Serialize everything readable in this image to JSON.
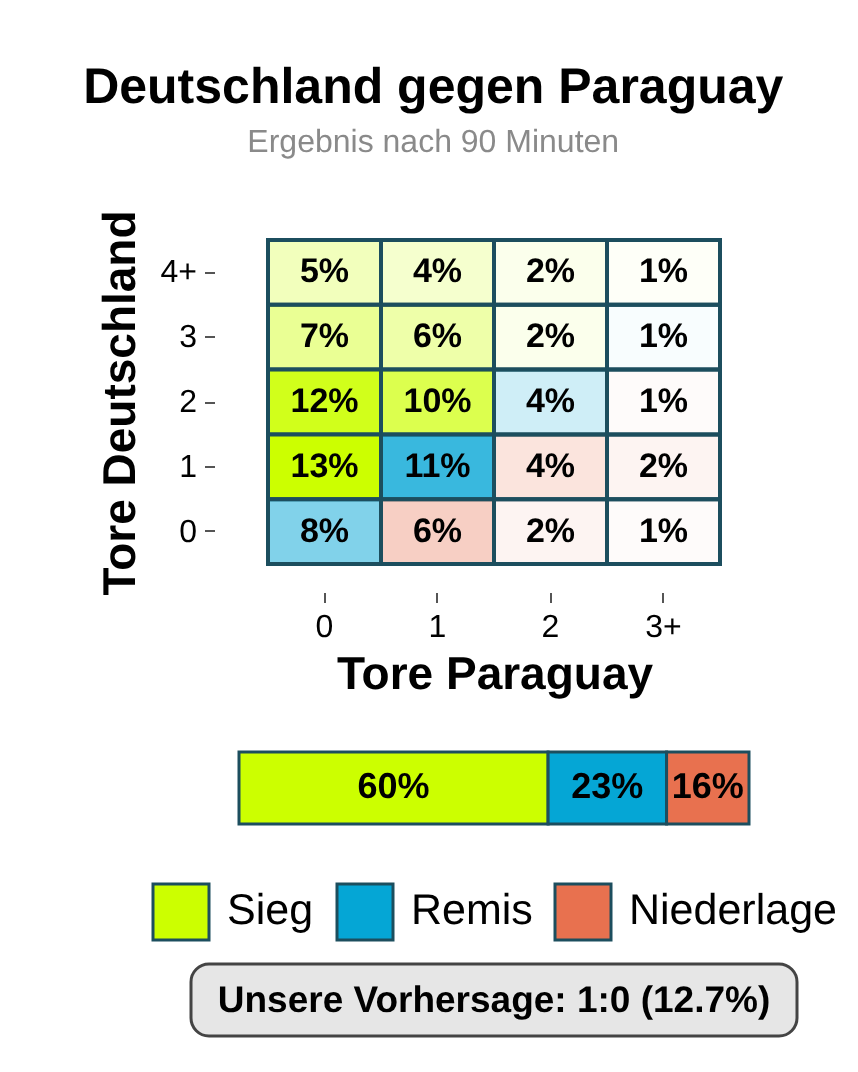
{
  "chart_data": [
    {
      "type": "heatmap",
      "title": "Deutschland gegen Paraguay",
      "subtitle": "Ergebnis nach 90 Minuten",
      "xlabel": "Tore Paraguay",
      "ylabel": "Tore Deutschland",
      "categories": [
        "0",
        "1",
        "2",
        "3+"
      ],
      "y_categories": [
        "4+",
        "3",
        "2",
        "1",
        "0"
      ],
      "cells": [
        [
          5,
          4,
          2,
          1
        ],
        [
          7,
          6,
          2,
          1
        ],
        [
          12,
          10,
          4,
          1
        ],
        [
          13,
          11,
          4,
          2
        ],
        [
          8,
          6,
          2,
          1
        ]
      ],
      "cell_labels": [
        [
          "5%",
          "4%",
          "2%",
          "1%"
        ],
        [
          "7%",
          "6%",
          "2%",
          "1%"
        ],
        [
          "12%",
          "10%",
          "4%",
          "1%"
        ],
        [
          "13%",
          "11%",
          "4%",
          "2%"
        ],
        [
          "8%",
          "6%",
          "2%",
          "1%"
        ]
      ],
      "colors": [
        [
          "#ccff00",
          "#ccff00",
          "#ccff00",
          "#ccff00"
        ],
        [
          "#ccff00",
          "#ccff00",
          "#ccff00",
          "#05a6d5"
        ],
        [
          "#ccff00",
          "#ccff00",
          "#05a6d5",
          "#e8714f"
        ],
        [
          "#ccff00",
          "#05a6d5",
          "#e8714f",
          "#e8714f"
        ],
        [
          "#05a6d5",
          "#e8714f",
          "#e8714f",
          "#e8714f"
        ]
      ]
    },
    {
      "type": "bar",
      "orientation": "horizontal",
      "stacked": true,
      "categories": [
        null
      ],
      "tick_labels": false,
      "legend": "bottom",
      "series": [
        {
          "name": "Sieg",
          "color": "#ccff00",
          "values": [
            60
          ],
          "value_labels": [
            "60%"
          ]
        },
        {
          "name": "Remis",
          "color": "#05a6d5",
          "values": [
            23
          ],
          "value_labels": [
            "23%"
          ]
        },
        {
          "name": "Niederlage",
          "color": "#e8714f",
          "values": [
            16
          ],
          "value_labels": [
            "16%"
          ]
        }
      ],
      "annotations": [
        "Unsere Vorhersage: 1:0 (12.7%)"
      ]
    }
  ]
}
